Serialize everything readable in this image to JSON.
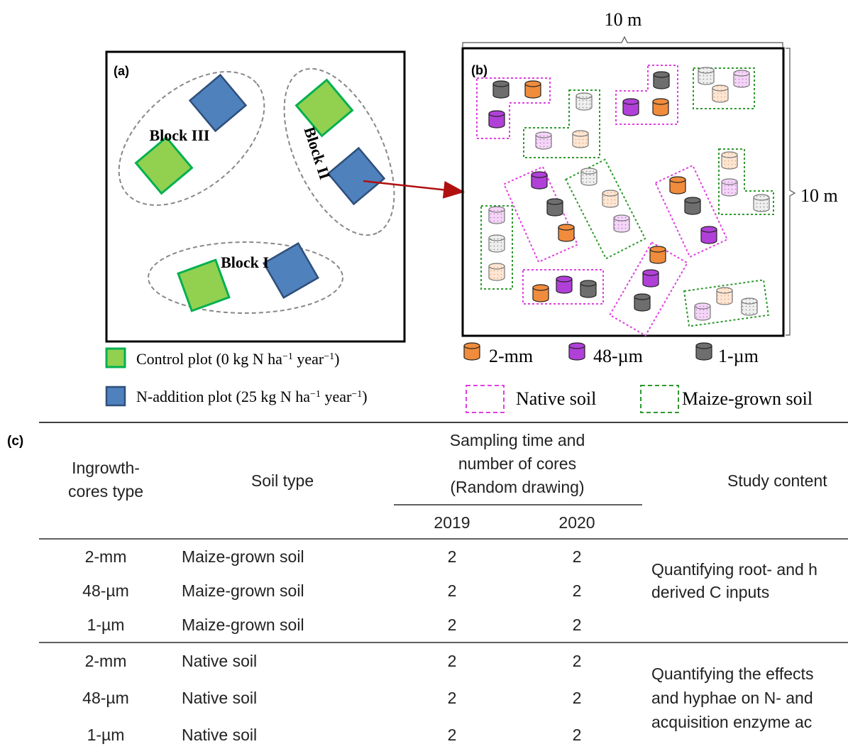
{
  "panel_a": {
    "label": "(a)",
    "blocks": [
      {
        "name": "Block III",
        "plots": [
          "N-addition",
          "Control"
        ]
      },
      {
        "name": "Block II",
        "plots": [
          "Control",
          "N-addition"
        ]
      },
      {
        "name": "Block I",
        "plots": [
          "Control",
          "N-addition"
        ]
      }
    ],
    "legend": {
      "control": {
        "text": "Control plot (0 kg N ha",
        "sup1": "−1",
        "mid": " year",
        "sup2": "−1",
        "end": ")"
      },
      "naddition": {
        "text": "N-addition plot (25 kg N ha",
        "sup1": "−1",
        "mid": " year",
        "sup2": "−1",
        "end": ")"
      }
    }
  },
  "panel_b": {
    "label": "(b)",
    "width_label": "10 m",
    "height_label": "10 m",
    "legend": {
      "core_2mm": "2-mm",
      "core_48um": "48-µm",
      "core_1um": "1-µm",
      "native": "Native soil",
      "maize": "Maize-grown soil"
    }
  },
  "panel_c": {
    "label": "(c)",
    "headers": {
      "type": [
        "Ingrowth-",
        "cores type"
      ],
      "soil": "Soil type",
      "sampling": [
        "Sampling time and",
        "number of cores",
        "(Random drawing)"
      ],
      "year1": "2019",
      "year2": "2020",
      "content": "Study content"
    },
    "group1": {
      "rows": [
        {
          "type": "2-mm",
          "soil": "Maize-grown soil",
          "y2019": "2",
          "y2020": "2"
        },
        {
          "type": "48-µm",
          "soil": "Maize-grown soil",
          "y2019": "2",
          "y2020": "2"
        },
        {
          "type": "1-µm",
          "soil": "Maize-grown soil",
          "y2019": "2",
          "y2020": "2"
        }
      ],
      "content": [
        "Quantifying root- and h",
        "derived C inputs"
      ]
    },
    "group2": {
      "rows": [
        {
          "type": "2-mm",
          "soil": "Native soil",
          "y2019": "2",
          "y2020": "2"
        },
        {
          "type": "48-µm",
          "soil": "Native soil",
          "y2019": "2",
          "y2020": "2"
        },
        {
          "type": "1-µm",
          "soil": "Native soil",
          "y2019": "2",
          "y2020": "2"
        }
      ],
      "content": [
        "Quantifying the effects",
        "and hyphae on N- and",
        "acquisition enzyme ac"
      ]
    }
  },
  "colors": {
    "control": "#92d050",
    "control_edge": "#00b050",
    "naddition": "#4f81bd",
    "naddition_edge": "#2f4f7a",
    "orange": "#f08c3c",
    "purple": "#b040d8",
    "gray": "#6e6e6e",
    "native": "#e040e0",
    "maize": "#2e9a2e",
    "arrow": "#b01010"
  }
}
